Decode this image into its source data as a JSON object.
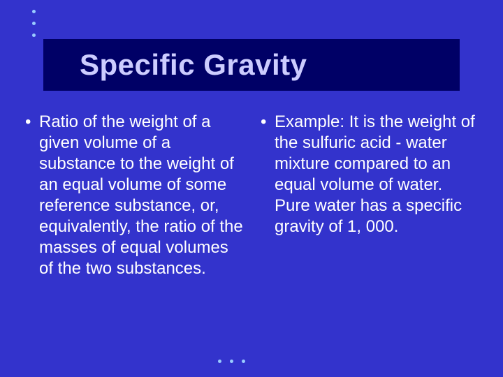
{
  "slide": {
    "background_color": "#3333cc",
    "title_bar_color": "#000066",
    "title_text_color": "#ccccff",
    "body_text_color": "#ffffff",
    "accent_dot_color": "#99ccff",
    "title": "Specific Gravity",
    "title_fontsize": 42,
    "body_fontsize": 24,
    "columns": [
      {
        "bullet": "•",
        "text": "Ratio of the weight of a given volume of a substance to the weight of an equal volume of some reference substance, or, equivalently, the ratio of the masses of equal volumes of the two substances."
      },
      {
        "bullet": "•",
        "text": "Example: It is the weight of the sulfuric acid - water mixture compared to an equal volume of water.  Pure water has a specific gravity of 1, 000."
      }
    ]
  }
}
